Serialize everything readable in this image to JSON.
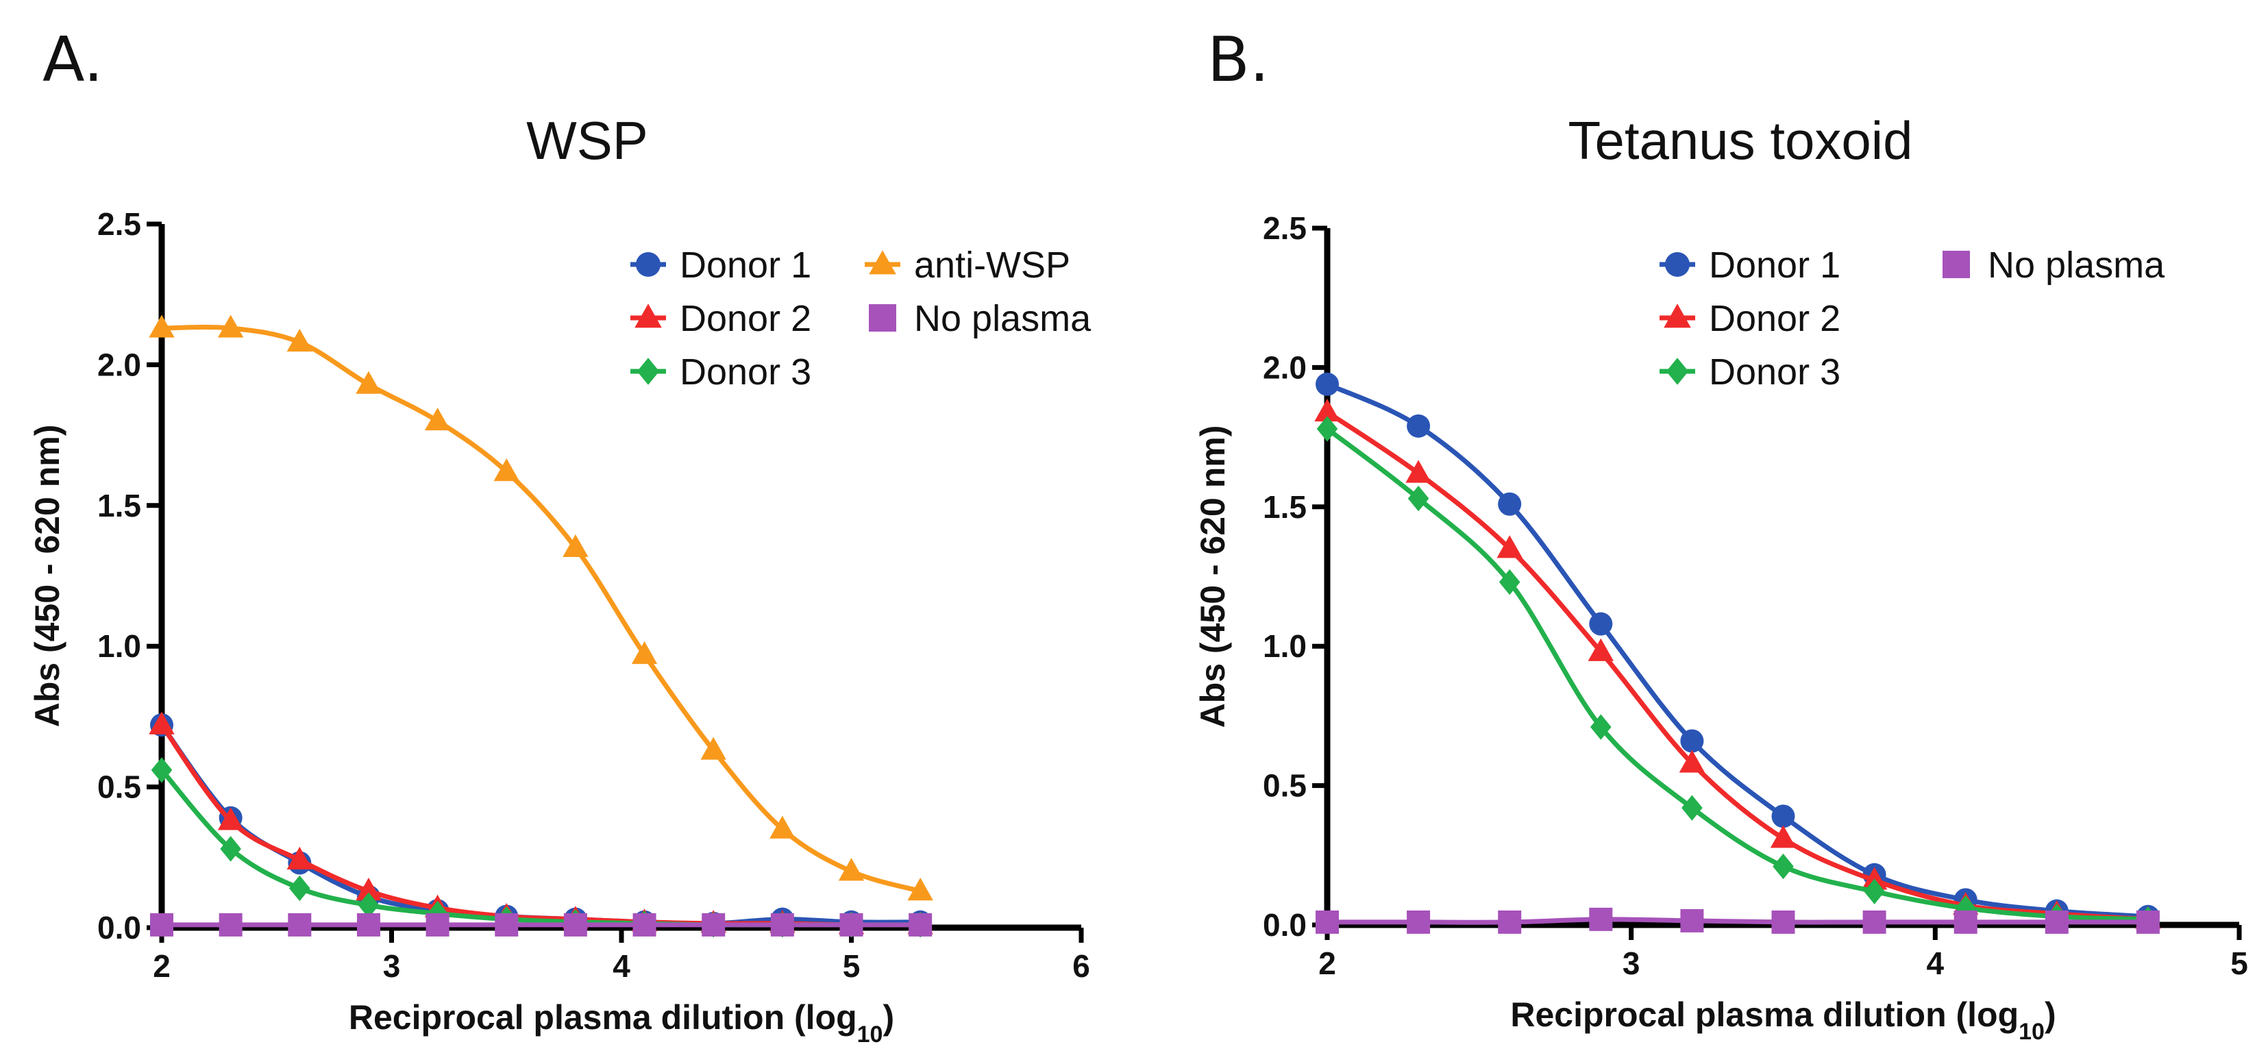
{
  "figure": {
    "panels": [
      "A.",
      "B."
    ]
  },
  "chart_data": [
    {
      "type": "line",
      "panel": "A.",
      "title": "WSP",
      "xlabel": "Reciprocal plasma dilution (log",
      "xlabel_subscript": "10",
      "xlabel_close": ")",
      "ylabel": "Abs (450 - 620 nm)",
      "xlim": [
        2,
        6
      ],
      "ylim": [
        0,
        2.5
      ],
      "xticks": [
        "2",
        "3",
        "4",
        "5",
        "6"
      ],
      "yticks": [
        "0.0",
        "0.5",
        "1.0",
        "1.5",
        "2.0",
        "2.5"
      ],
      "x": [
        2.0,
        2.3,
        2.6,
        2.9,
        3.2,
        3.5,
        3.8,
        4.1,
        4.4,
        4.7,
        5.0,
        5.3
      ],
      "series": [
        {
          "name": "Donor 1",
          "color": "#2a55b5",
          "marker": "circle",
          "values": [
            0.72,
            0.39,
            0.23,
            0.11,
            0.06,
            0.04,
            0.03,
            0.02,
            0.015,
            0.03,
            0.02,
            0.02
          ]
        },
        {
          "name": "Donor 2",
          "color": "#f02a2a",
          "marker": "triangle",
          "values": [
            0.72,
            0.38,
            0.24,
            0.13,
            0.07,
            0.04,
            0.03,
            0.02,
            0.015,
            0.015,
            0.01,
            0.01
          ]
        },
        {
          "name": "Donor 3",
          "color": "#22b14c",
          "marker": "diamond",
          "values": [
            0.56,
            0.28,
            0.14,
            0.08,
            0.05,
            0.03,
            0.02,
            0.015,
            0.01,
            0.01,
            0.01,
            0.01
          ]
        },
        {
          "name": "anti-WSP",
          "color": "#f8991c",
          "marker": "triangle",
          "values": [
            2.13,
            2.13,
            2.08,
            1.93,
            1.8,
            1.62,
            1.35,
            0.97,
            0.63,
            0.35,
            0.2,
            0.13
          ]
        },
        {
          "name": "No plasma",
          "color": "#a652ba",
          "marker": "square",
          "values": [
            0.01,
            0.01,
            0.01,
            0.01,
            0.01,
            0.01,
            0.01,
            0.01,
            0.01,
            0.01,
            0.01,
            0.01
          ]
        }
      ],
      "legend": {
        "placement": "top-right",
        "columns": [
          [
            "Donor 1",
            "Donor 2",
            "Donor 3"
          ],
          [
            "anti-WSP",
            "No plasma"
          ]
        ]
      }
    },
    {
      "type": "line",
      "panel": "B.",
      "title": "Tetanus toxoid",
      "xlabel": "Reciprocal plasma dilution (log",
      "xlabel_subscript": "10",
      "xlabel_close": ")",
      "ylabel": "Abs (450 - 620 nm)",
      "xlim": [
        2,
        5
      ],
      "ylim": [
        0,
        2.5
      ],
      "xticks": [
        "2",
        "3",
        "4",
        "5"
      ],
      "yticks": [
        "0.0",
        "0.5",
        "1.0",
        "1.5",
        "2.0",
        "2.5"
      ],
      "x": [
        2.0,
        2.3,
        2.6,
        2.9,
        3.2,
        3.5,
        3.8,
        4.1,
        4.4,
        4.7
      ],
      "series": [
        {
          "name": "Donor 1",
          "color": "#2a55b5",
          "marker": "circle",
          "values": [
            1.94,
            1.79,
            1.51,
            1.08,
            0.66,
            0.39,
            0.18,
            0.09,
            0.05,
            0.03
          ]
        },
        {
          "name": "Donor 2",
          "color": "#f02a2a",
          "marker": "triangle",
          "values": [
            1.84,
            1.62,
            1.35,
            0.98,
            0.58,
            0.31,
            0.16,
            0.07,
            0.04,
            0.02
          ]
        },
        {
          "name": "Donor 3",
          "color": "#22b14c",
          "marker": "diamond",
          "values": [
            1.78,
            1.53,
            1.23,
            0.71,
            0.42,
            0.21,
            0.12,
            0.06,
            0.03,
            0.02
          ]
        },
        {
          "name": "No plasma",
          "color": "#a652ba",
          "marker": "square",
          "values": [
            0.01,
            0.01,
            0.01,
            0.02,
            0.015,
            0.01,
            0.01,
            0.01,
            0.01,
            0.01
          ]
        }
      ],
      "legend": {
        "placement": "top-right",
        "columns": [
          [
            "Donor 1",
            "Donor 2",
            "Donor 3"
          ],
          [
            "No plasma"
          ]
        ]
      }
    }
  ]
}
